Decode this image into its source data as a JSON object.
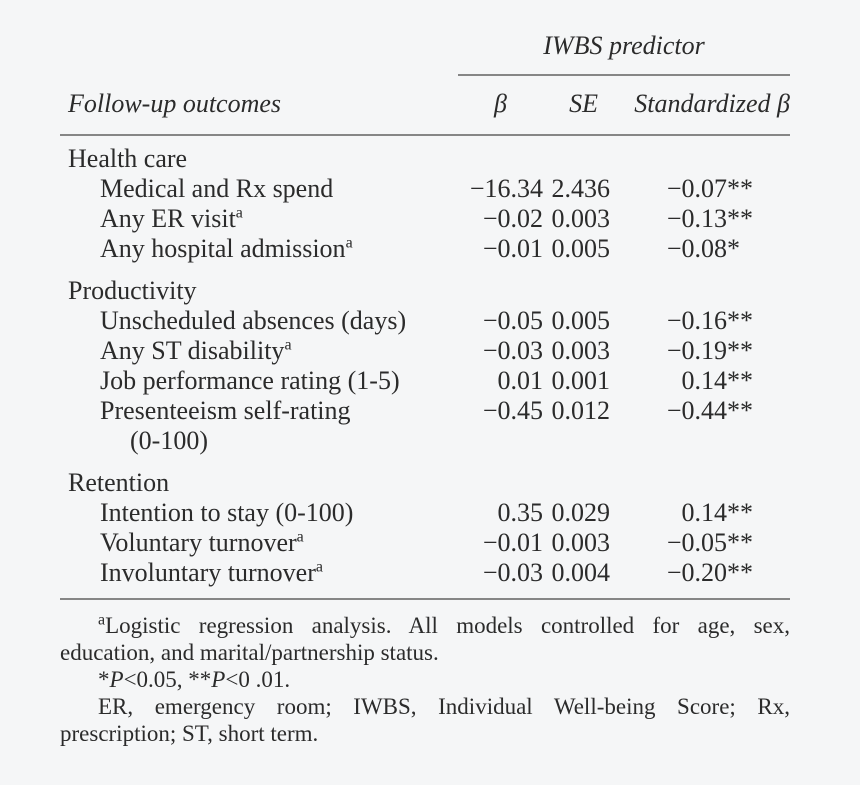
{
  "page": {
    "background": "#f5f6f7",
    "text_color": "#2b2b2b",
    "rule_color": "#868686"
  },
  "table": {
    "spanner": "IWBS predictor",
    "row_header": "Follow-up outcomes",
    "columns": [
      "β",
      "SE",
      "Standardized β"
    ],
    "sections": [
      {
        "title": "Health care",
        "rows": [
          {
            "label": "Medical and Rx spend",
            "beta": "−16.34",
            "se": "2.436",
            "std": "−0.07",
            "stars": "**"
          },
          {
            "label": "Any ER visit",
            "sup": "a",
            "beta": "−0.02",
            "se": "0.003",
            "std": "−0.13",
            "stars": "**"
          },
          {
            "label": "Any hospital admission",
            "sup": "a",
            "beta": "−0.01",
            "se": "0.005",
            "std": "−0.08",
            "stars": "*"
          }
        ]
      },
      {
        "title": "Productivity",
        "rows": [
          {
            "label": "Unscheduled absences (days)",
            "beta": "−0.05",
            "se": "0.005",
            "std": "−0.16",
            "stars": "**"
          },
          {
            "label": "Any ST disability",
            "sup": "a",
            "beta": "−0.03",
            "se": "0.003",
            "std": "−0.19",
            "stars": "**"
          },
          {
            "label": "Job performance rating (1-5)",
            "beta": "0.01",
            "se": "0.001",
            "std": "0.14",
            "stars": "**"
          },
          {
            "label": "Presenteeism self-rating",
            "label2": "(0-100)",
            "beta": "−0.45",
            "se": "0.012",
            "std": "−0.44",
            "stars": "**"
          }
        ]
      },
      {
        "title": "Retention",
        "rows": [
          {
            "label": "Intention to stay (0-100)",
            "beta": "0.35",
            "se": "0.029",
            "std": "0.14",
            "stars": "**"
          },
          {
            "label": "Voluntary turnover",
            "sup": "a",
            "beta": "−0.01",
            "se": "0.003",
            "std": "−0.05",
            "stars": "**"
          },
          {
            "label": "Involuntary turnover",
            "sup": "a",
            "beta": "−0.03",
            "se": "0.004",
            "std": "−0.20",
            "stars": "**"
          }
        ]
      }
    ]
  },
  "footnotes": {
    "note_a": {
      "sup": "a",
      "line1": "Logistic regression analysis. All models controlled for age, sex,",
      "line2": "education, and marital/partnership status."
    },
    "significance": [
      "*",
      "P",
      "<0.05, **",
      "P",
      "<0 .01."
    ],
    "abbreviations": {
      "line1": "ER, emergency room; IWBS, Individual Well-being Score; Rx,",
      "line2": "prescription; ST, short term."
    }
  }
}
